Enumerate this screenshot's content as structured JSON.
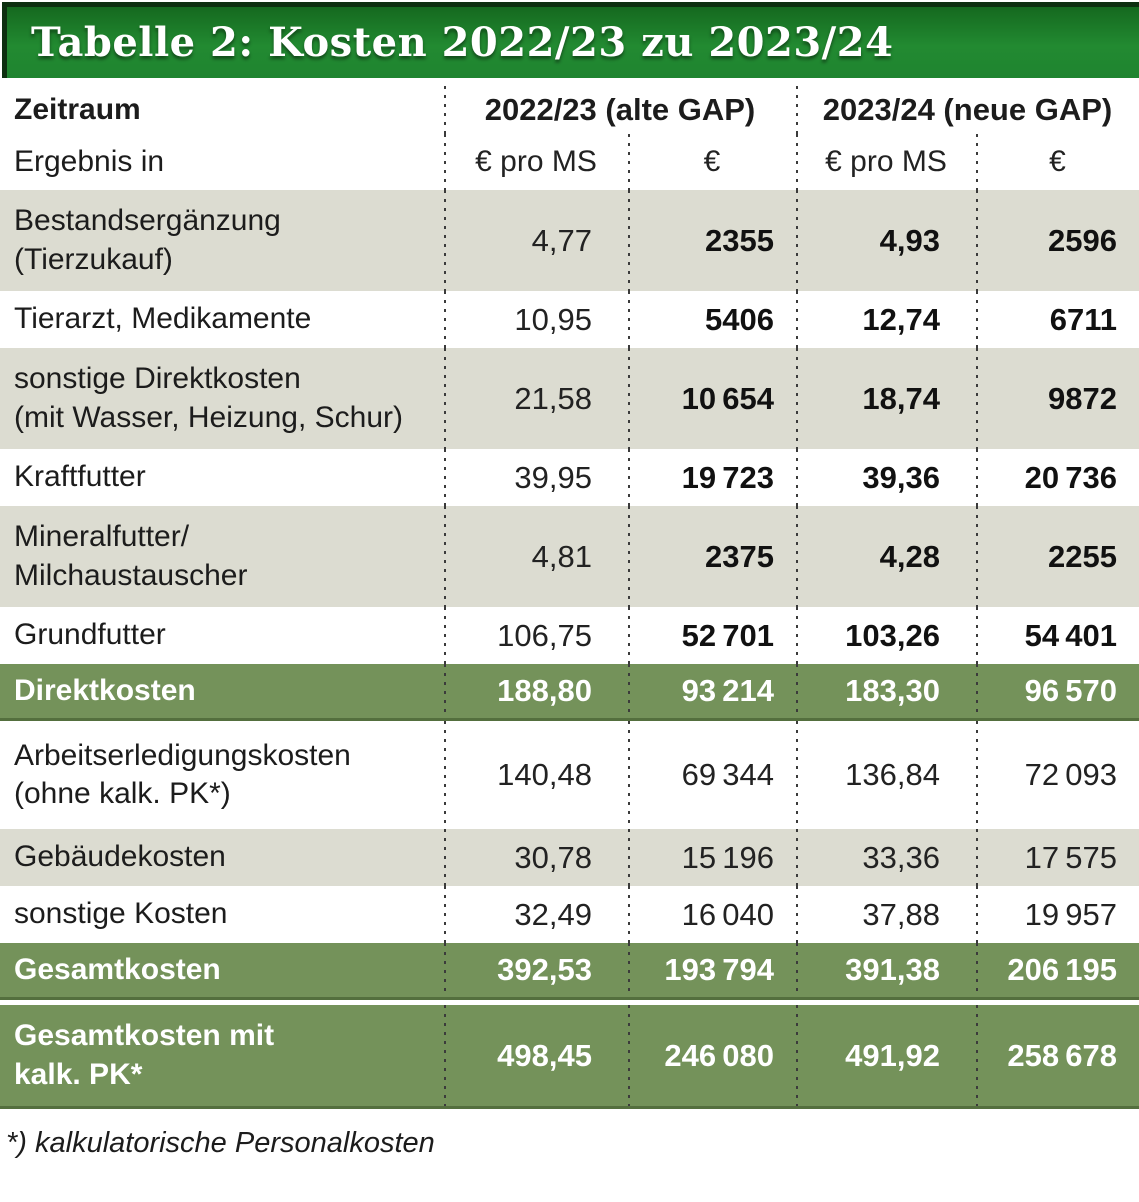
{
  "title": "Tabelle 2: Kosten 2022/23 zu 2023/24",
  "colors": {
    "title_bar_green": "#228a31",
    "title_bar_border": "#0d2f10",
    "summary_row_green": "#74925a",
    "alt_row_grey": "#dcdcd1",
    "text": "#1c1c1c",
    "title_text": "#ffffff"
  },
  "header": {
    "period_label": "Zeitraum",
    "group1": "2022/23 (alte GAP)",
    "group2": "2023/24 (neue GAP)",
    "result_label": "Ergebnis in",
    "units": [
      "€ pro MS",
      "€",
      "€ pro MS",
      "€"
    ]
  },
  "table": {
    "rows": [
      {
        "label": "Bestandsergänzung\n(Tierzukauf)",
        "v": [
          "4,77",
          "2355",
          "4,93",
          "2596"
        ]
      },
      {
        "label": "Tierarzt, Medikamente",
        "v": [
          "10,95",
          "5406",
          "12,74",
          "6711"
        ]
      },
      {
        "label": "sonstige Direktkosten\n(mit Wasser, Heizung, Schur)",
        "v": [
          "21,58",
          "10 654",
          "18,74",
          "9872"
        ]
      },
      {
        "label": "Kraftfutter",
        "v": [
          "39,95",
          "19 723",
          "39,36",
          "20 736"
        ]
      },
      {
        "label": "Mineralfutter/\nMilchaustauscher",
        "v": [
          "4,81",
          "2375",
          "4,28",
          "2255"
        ]
      },
      {
        "label": "Grundfutter",
        "v": [
          "106,75",
          "52 701",
          "103,26",
          "54 401"
        ]
      },
      {
        "label": "Direktkosten",
        "v": [
          "188,80",
          "93 214",
          "183,30",
          "96 570"
        ]
      },
      {
        "label": "Arbeitserledigungskosten\n(ohne kalk. PK*)",
        "v": [
          "140,48",
          "69 344",
          "136,84",
          "72 093"
        ]
      },
      {
        "label": "Gebäudekosten",
        "v": [
          "30,78",
          "15 196",
          "33,36",
          "17 575"
        ]
      },
      {
        "label": "sonstige Kosten",
        "v": [
          "32,49",
          "16 040",
          "37,88",
          "19 957"
        ]
      },
      {
        "label": "Gesamtkosten",
        "v": [
          "392,53",
          "193 794",
          "391,38",
          "206 195"
        ]
      },
      {
        "label": "Gesamtkosten mit\nkalk. PK*",
        "v": [
          "498,45",
          "246 080",
          "491,92",
          "258 678"
        ]
      }
    ]
  },
  "footnote": "*) kalkulatorische Personalkosten",
  "chart_data": {
    "type": "table",
    "title": "Tabelle 2: Kosten 2022/23 zu 2023/24",
    "column_groups": [
      "2022/23 (alte GAP)",
      "2023/24 (neue GAP)"
    ],
    "columns": [
      "Zeitraum / Ergebnis in",
      "€ pro MS (2022/23)",
      "€ (2022/23)",
      "€ pro MS (2023/24)",
      "€ (2023/24)"
    ],
    "rows": [
      [
        "Bestandsergänzung (Tierzukauf)",
        4.77,
        2355,
        4.93,
        2596
      ],
      [
        "Tierarzt, Medikamente",
        10.95,
        5406,
        12.74,
        6711
      ],
      [
        "sonstige Direktkosten (mit Wasser, Heizung, Schur)",
        21.58,
        10654,
        18.74,
        9872
      ],
      [
        "Kraftfutter",
        39.95,
        19723,
        39.36,
        20736
      ],
      [
        "Mineralfutter/Milchaustauscher",
        4.81,
        2375,
        4.28,
        2255
      ],
      [
        "Grundfutter",
        106.75,
        52701,
        103.26,
        54401
      ],
      [
        "Direktkosten",
        188.8,
        93214,
        183.3,
        96570
      ],
      [
        "Arbeitserledigungskosten (ohne kalk. PK*)",
        140.48,
        69344,
        136.84,
        72093
      ],
      [
        "Gebäudekosten",
        30.78,
        15196,
        33.36,
        17575
      ],
      [
        "sonstige Kosten",
        32.49,
        16040,
        37.88,
        19957
      ],
      [
        "Gesamtkosten",
        392.53,
        193794,
        391.38,
        206195
      ],
      [
        "Gesamtkosten mit kalk. PK*",
        498.45,
        246080,
        491.92,
        258678
      ]
    ],
    "summary_rows": [
      "Direktkosten",
      "Gesamtkosten",
      "Gesamtkosten mit kalk. PK*"
    ],
    "footnote": "*) kalkulatorische Personalkosten"
  }
}
